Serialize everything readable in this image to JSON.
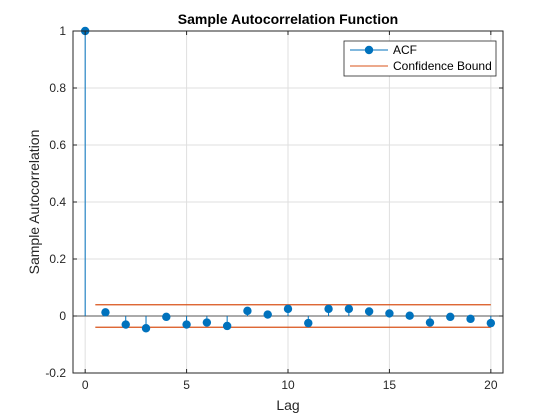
{
  "chart_data": {
    "type": "scatter",
    "title": "Sample Autocorrelation Function",
    "xlabel": "Lag",
    "ylabel": "Sample Autocorrelation",
    "xlim": [
      -0.6,
      20.6
    ],
    "ylim": [
      -0.2,
      1
    ],
    "xticks": [
      "0",
      "5",
      "10",
      "15",
      "20"
    ],
    "xtick_values": [
      0,
      5,
      10,
      15,
      20
    ],
    "yticks": [
      "-0.2",
      "0",
      "0.2",
      "0.4",
      "0.6",
      "0.8",
      "1"
    ],
    "ytick_values": [
      -0.2,
      0,
      0.2,
      0.4,
      0.6,
      0.8,
      1
    ],
    "grid": true,
    "legend_position": "top-right",
    "series": [
      {
        "name": "ACF",
        "color": "#0072BD",
        "style": "stem",
        "x": [
          0,
          1,
          2,
          3,
          4,
          5,
          6,
          7,
          8,
          9,
          10,
          11,
          12,
          13,
          14,
          15,
          16,
          17,
          18,
          19,
          20
        ],
        "y": [
          1.0,
          0.013,
          -0.03,
          -0.043,
          -0.003,
          -0.03,
          -0.023,
          -0.035,
          0.018,
          0.005,
          0.025,
          -0.025,
          0.025,
          0.025,
          0.016,
          0.009,
          0.001,
          -0.023,
          -0.003,
          -0.01,
          -0.025
        ]
      },
      {
        "name": "Confidence Bound",
        "color": "#D95319",
        "style": "line",
        "x_range": [
          0.5,
          20
        ],
        "upper": 0.0396,
        "lower": -0.0396
      }
    ]
  }
}
